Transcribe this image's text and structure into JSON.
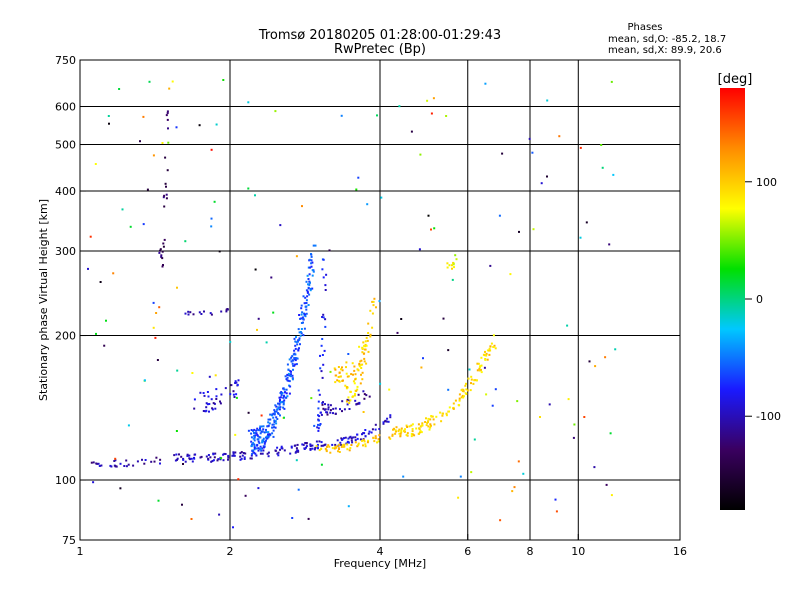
{
  "chart_data": {
    "type": "scatter",
    "title": "Tromsø 20180205 01:28:00-01:29:43",
    "subtitle": "RwPretec (Bp)",
    "xlabel": "Frequency [MHz]",
    "ylabel": "Stationary phase Virtual Height [km]",
    "x_scale": "log",
    "y_scale": "log",
    "xlim": [
      1,
      16
    ],
    "ylim": [
      75,
      750
    ],
    "x_ticks": [
      "1",
      "2",
      "4",
      "6",
      "8",
      "10",
      "16"
    ],
    "x_tick_values": [
      1,
      2,
      4,
      6,
      8,
      10,
      16
    ],
    "y_ticks": [
      "75",
      "100",
      "200",
      "300",
      "400",
      "500",
      "600",
      "750"
    ],
    "y_tick_values": [
      75,
      100,
      200,
      300,
      400,
      500,
      600,
      750
    ],
    "x_grid": [
      2,
      4,
      6,
      8,
      10
    ],
    "y_grid": [
      100,
      200,
      300,
      400,
      500,
      600
    ],
    "grid": true,
    "legend": {
      "heading": "Phases",
      "line1": "mean, sd,O: -85.2, 18.7",
      "line2": "mean, sd,X:  89.9, 20.6",
      "placement": "top-right"
    },
    "colorbar": {
      "label": "[deg]",
      "range": [
        -180,
        180
      ],
      "ticks": [
        "100",
        "0",
        "-100"
      ],
      "tick_values": [
        100,
        0,
        -100
      ],
      "colormap": "rainbow",
      "stops": [
        "#000000",
        "#3a0060",
        "#1a1aff",
        "#00c8ff",
        "#00e000",
        "#ffff00",
        "#ff8c00",
        "#ff0000"
      ]
    },
    "series": [
      {
        "traces": [
          {
            "f0": 1.05,
            "f1": 1.45,
            "h0": 108,
            "h1": 110,
            "n": 30,
            "phase": -105,
            "spread": 0.02
          },
          {
            "f0": 1.55,
            "f1": 2.9,
            "h0": 111,
            "h1": 118,
            "n": 110,
            "phase": -100,
            "spread": 0.02
          },
          {
            "f0": 2.9,
            "f1": 4.2,
            "h0": 118,
            "h1": 135,
            "n": 70,
            "phase": -95,
            "spread": 0.02
          },
          {
            "f0": 3.0,
            "f1": 3.8,
            "h0": 140,
            "h1": 152,
            "n": 40,
            "phase": -110,
            "spread": 0.03
          },
          {
            "f0": 1.7,
            "f1": 2.1,
            "h0": 145,
            "h1": 160,
            "n": 40,
            "phase": -95,
            "spread": 0.05
          },
          {
            "f0": 1.45,
            "f1": 1.5,
            "h0": 290,
            "h1": 580,
            "n": 25,
            "phase": -130,
            "spread": 0.05
          },
          {
            "f0": 2.2,
            "f1": 2.95,
            "h0": 120,
            "h1": 300,
            "n": 300,
            "phase": -60,
            "spread": 0.06
          },
          {
            "f0": 3.0,
            "f1": 3.1,
            "h0": 130,
            "h1": 300,
            "n": 40,
            "phase": -80,
            "spread": 0.05
          },
          {
            "f0": 1.6,
            "f1": 2.0,
            "h0": 222,
            "h1": 226,
            "n": 15,
            "phase": -100,
            "spread": 0.01
          }
        ]
      },
      {
        "traces": [
          {
            "f0": 3.0,
            "f1": 4.3,
            "h0": 116,
            "h1": 126,
            "n": 60,
            "phase": 100,
            "spread": 0.02
          },
          {
            "f0": 4.3,
            "f1": 6.8,
            "h0": 126,
            "h1": 195,
            "n": 140,
            "phase": 95,
            "spread": 0.03
          },
          {
            "f0": 3.4,
            "f1": 3.9,
            "h0": 150,
            "h1": 240,
            "n": 60,
            "phase": 95,
            "spread": 0.05
          },
          {
            "f0": 3.2,
            "f1": 3.8,
            "h0": 165,
            "h1": 195,
            "n": 40,
            "phase": 100,
            "spread": 0.04
          },
          {
            "f0": 5.5,
            "f1": 5.8,
            "h0": 280,
            "h1": 290,
            "n": 10,
            "phase": 80,
            "spread": 0.02
          }
        ]
      }
    ],
    "scatter_noise": {
      "n": 180,
      "f0": 1.0,
      "f1": 12.0,
      "h0": 78,
      "h1": 700
    }
  }
}
